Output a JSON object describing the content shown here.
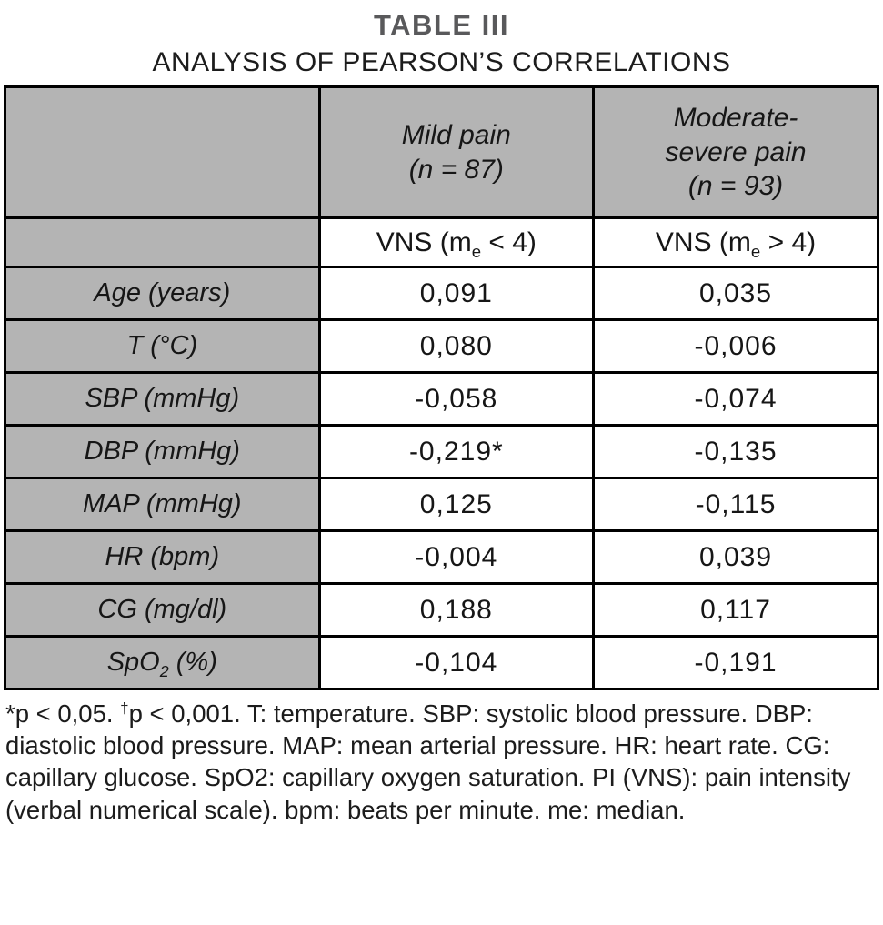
{
  "title": {
    "line1": "TABLE III",
    "line2": "ANALYSIS OF PEARSON’S CORRELATIONS"
  },
  "table": {
    "col_headers": [
      "Mild pain\n(n = 87)",
      "Moderate-\nsevere pain\n(n = 93)"
    ],
    "subheaders": [
      {
        "pre": "VNS (m",
        "sub": "e",
        "post": " < 4)"
      },
      {
        "pre": "VNS (m",
        "sub": "e",
        "post": " > 4)"
      }
    ],
    "rows": [
      {
        "label": {
          "pre": "Age (years)",
          "sub": "",
          "post": ""
        },
        "mild": "0,091",
        "modsev": "0,035"
      },
      {
        "label": {
          "pre": "T (°C)",
          "sub": "",
          "post": ""
        },
        "mild": "0,080",
        "modsev": "-0,006"
      },
      {
        "label": {
          "pre": "SBP (mmHg)",
          "sub": "",
          "post": ""
        },
        "mild": "-0,058",
        "modsev": "-0,074"
      },
      {
        "label": {
          "pre": "DBP (mmHg)",
          "sub": "",
          "post": ""
        },
        "mild": "-0,219*",
        "modsev": "-0,135"
      },
      {
        "label": {
          "pre": "MAP (mmHg)",
          "sub": "",
          "post": ""
        },
        "mild": "0,125",
        "modsev": "-0,115"
      },
      {
        "label": {
          "pre": "HR (bpm)",
          "sub": "",
          "post": ""
        },
        "mild": "-0,004",
        "modsev": "0,039"
      },
      {
        "label": {
          "pre": "CG (mg/dl)",
          "sub": "",
          "post": ""
        },
        "mild": "0,188",
        "modsev": "0,117"
      },
      {
        "label": {
          "pre": "SpO",
          "sub": "2",
          "post": " (%)"
        },
        "mild": "-0,104",
        "modsev": "-0,191"
      }
    ]
  },
  "footnote": {
    "part1": "*p < 0,05. ",
    "sup": "†",
    "part2": "p < 0,001. T: temperature. SBP: systolic blood pressure. DBP: diastolic blood pressure. MAP: mean arterial pressure. HR: heart rate. CG: capillary glucose. SpO2: capillary oxygen saturation. PI (VNS): pain intensity (verbal numerical scale). bpm: beats per minute. me: median."
  },
  "colors": {
    "header_gray": "#b4b4b4",
    "border": "#000000"
  }
}
